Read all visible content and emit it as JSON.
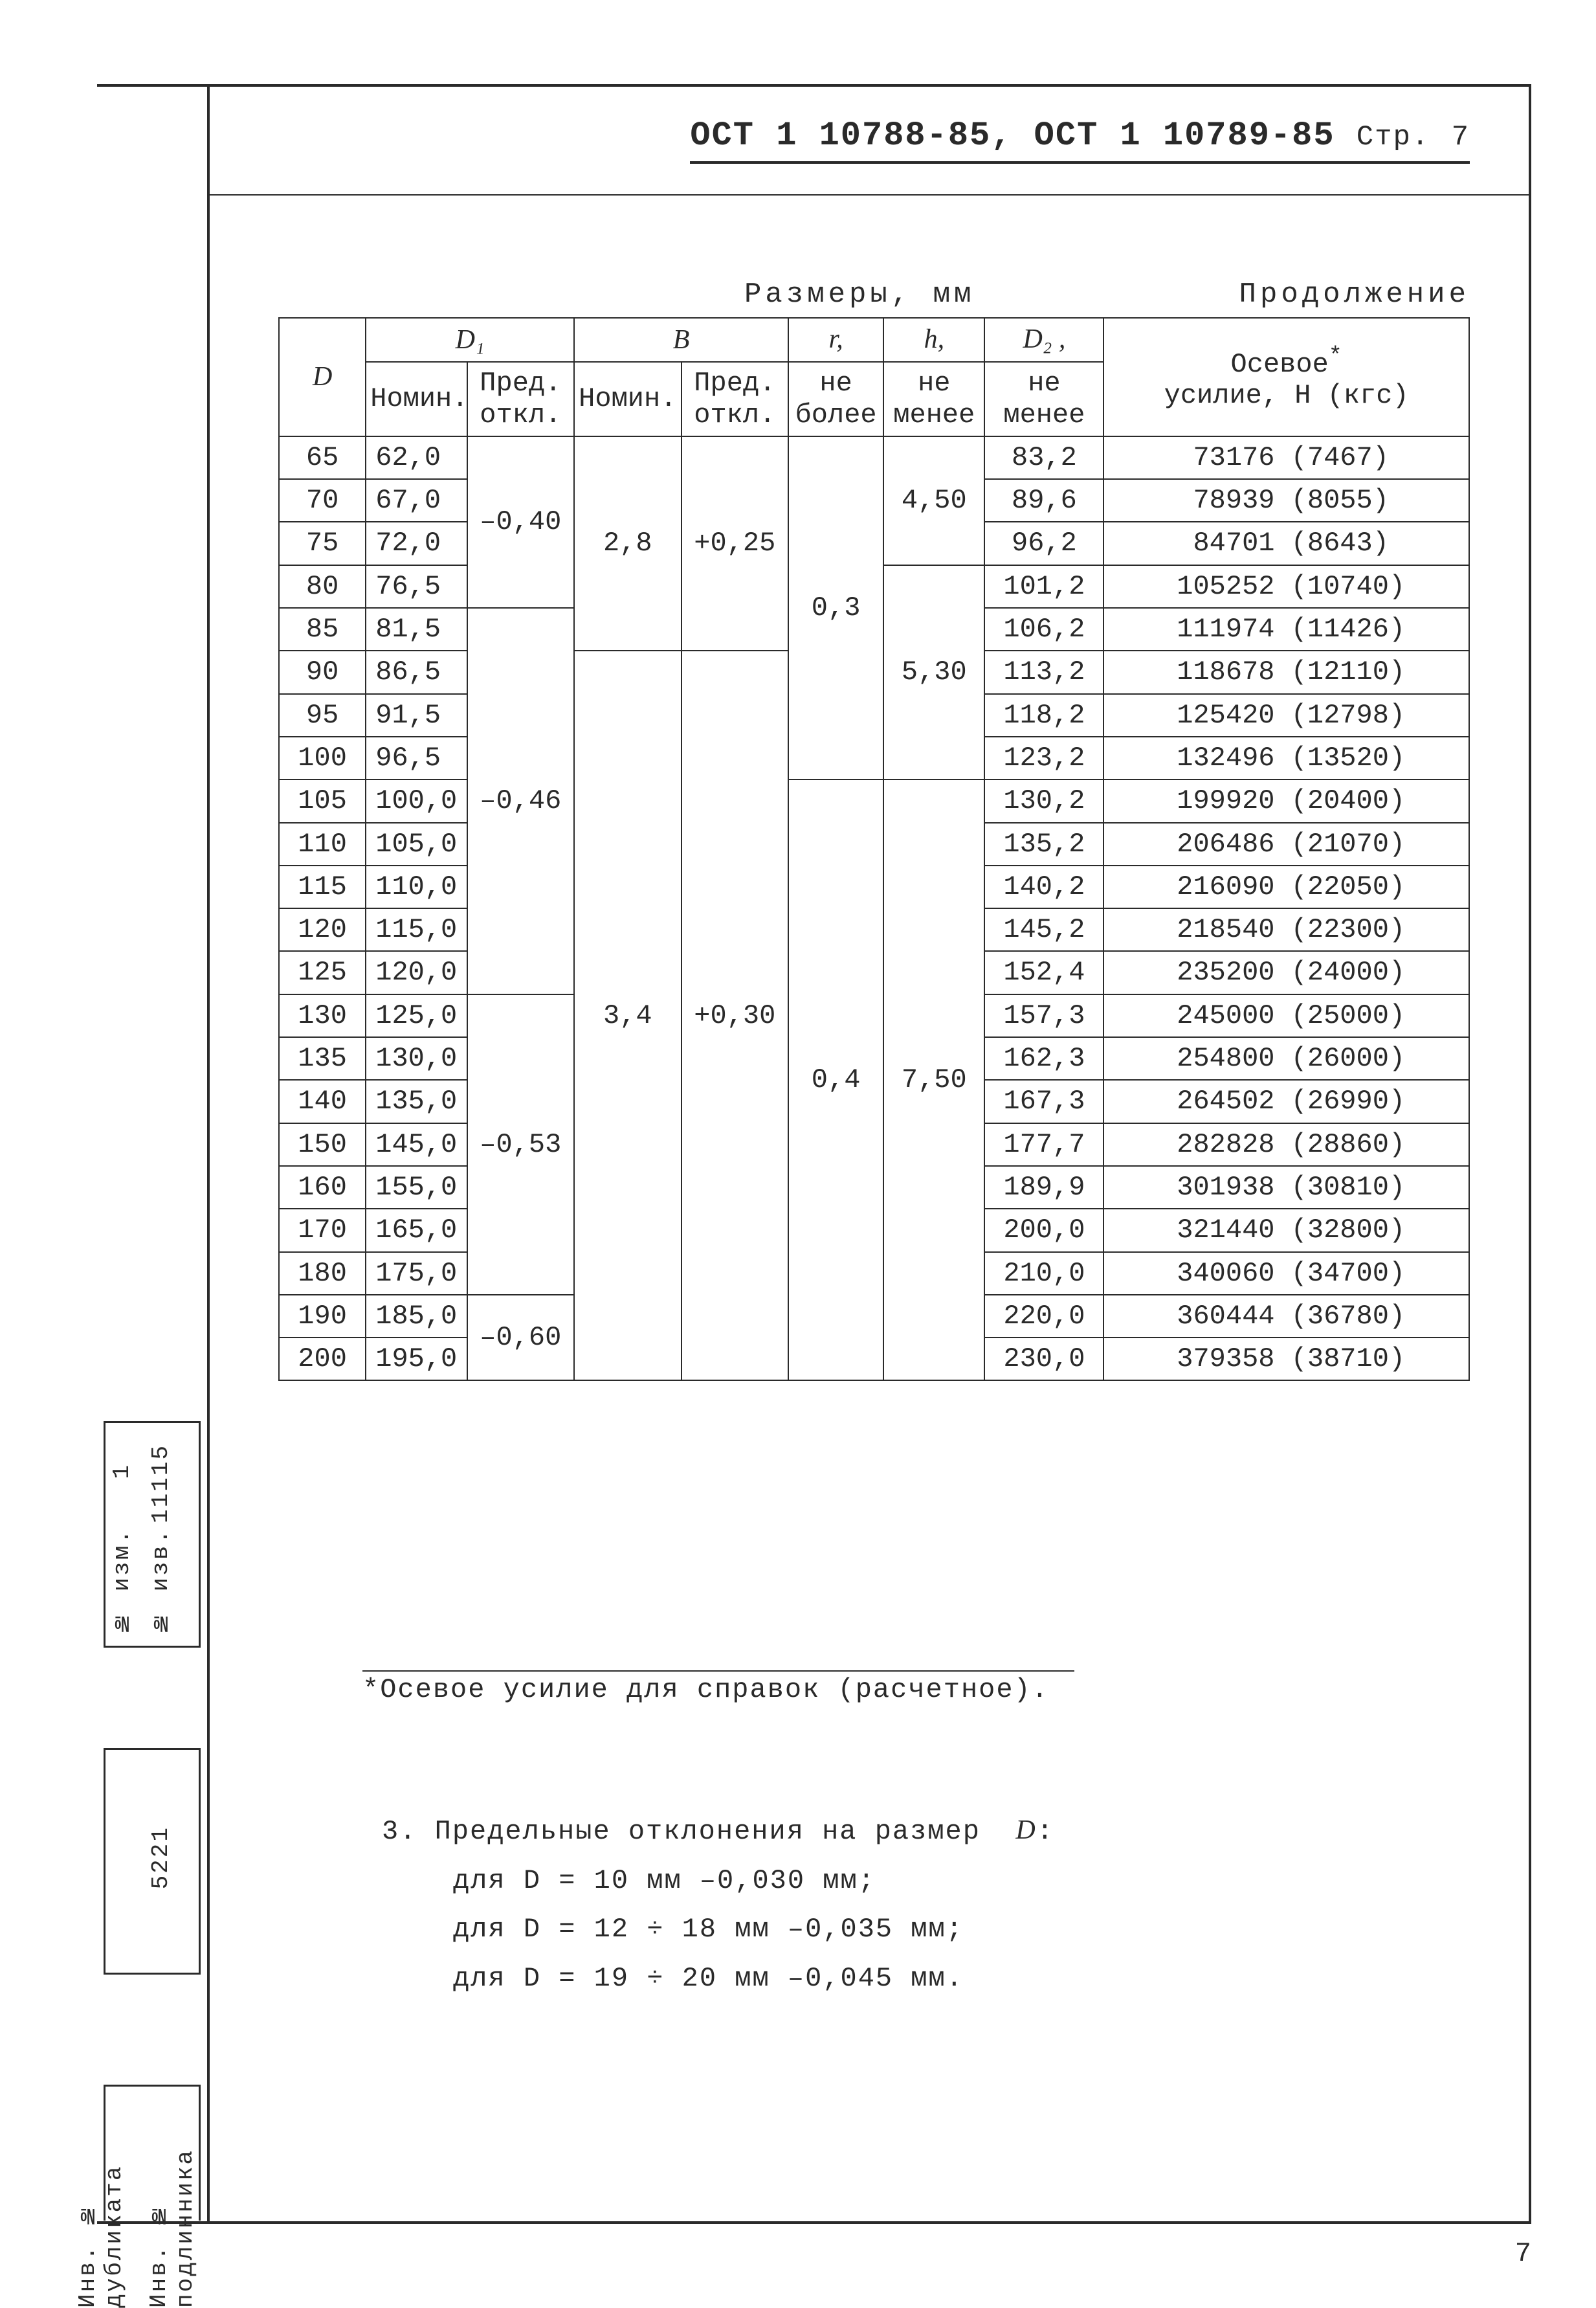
{
  "header": {
    "title": "ОСТ 1 10788-85, ОСТ 1 10789-85",
    "page_label": "Стр.",
    "page_num": "7"
  },
  "top": {
    "dim_label": "Размеры, мм",
    "cont_label": "Продолжение"
  },
  "columns": {
    "D": "D",
    "D1": "D₁",
    "B": "B",
    "nomin": "Номин.",
    "pred": "Пред. откл.",
    "r": "r,",
    "ne_bolee": "не более",
    "h": "h,",
    "ne_menee": "не менее",
    "D2": "D₂ ,",
    "force": "Осевое",
    "force_sub": "усилие, Н (кгс)",
    "asterisk": "*"
  },
  "rows": [
    {
      "D": "65",
      "D1": "62,0",
      "D2": "83,2",
      "F": "73176 (7467)"
    },
    {
      "D": "70",
      "D1": "67,0",
      "D2": "89,6",
      "F": "78939 (8055)"
    },
    {
      "D": "75",
      "D1": "72,0",
      "D2": "96,2",
      "F": "84701 (8643)"
    },
    {
      "D": "80",
      "D1": "76,5",
      "D2": "101,2",
      "F": "105252 (10740)"
    },
    {
      "D": "85",
      "D1": "81,5",
      "D2": "106,2",
      "F": "111974 (11426)"
    },
    {
      "D": "90",
      "D1": "86,5",
      "D2": "113,2",
      "F": "118678 (12110)"
    },
    {
      "D": "95",
      "D1": "91,5",
      "D2": "118,2",
      "F": "125420 (12798)"
    },
    {
      "D": "100",
      "D1": "96,5",
      "D2": "123,2",
      "F": "132496 (13520)"
    },
    {
      "D": "105",
      "D1": "100,0",
      "D2": "130,2",
      "F": "199920 (20400)"
    },
    {
      "D": "110",
      "D1": "105,0",
      "D2": "135,2",
      "F": "206486 (21070)"
    },
    {
      "D": "115",
      "D1": "110,0",
      "D2": "140,2",
      "F": "216090 (22050)"
    },
    {
      "D": "120",
      "D1": "115,0",
      "D2": "145,2",
      "F": "218540 (22300)"
    },
    {
      "D": "125",
      "D1": "120,0",
      "D2": "152,4",
      "F": "235200 (24000)"
    },
    {
      "D": "130",
      "D1": "125,0",
      "D2": "157,3",
      "F": "245000 (25000)"
    },
    {
      "D": "135",
      "D1": "130,0",
      "D2": "162,3",
      "F": "254800 (26000)"
    },
    {
      "D": "140",
      "D1": "135,0",
      "D2": "167,3",
      "F": "264502 (26990)"
    },
    {
      "D": "150",
      "D1": "145,0",
      "D2": "177,7",
      "F": "282828 (28860)"
    },
    {
      "D": "160",
      "D1": "155,0",
      "D2": "189,9",
      "F": "301938 (30810)"
    },
    {
      "D": "170",
      "D1": "165,0",
      "D2": "200,0",
      "F": "321440 (32800)"
    },
    {
      "D": "180",
      "D1": "175,0",
      "D2": "210,0",
      "F": "340060 (34700)"
    },
    {
      "D": "190",
      "D1": "185,0",
      "D2": "220,0",
      "F": "360444 (36780)"
    },
    {
      "D": "200",
      "D1": "195,0",
      "D2": "230,0",
      "F": "379358 (38710)"
    }
  ],
  "merges": {
    "pred_D1": [
      {
        "val": "–0,40",
        "span": 4
      },
      {
        "val": "–0,46",
        "span": 9
      },
      {
        "val": "–0,53",
        "span": 7
      },
      {
        "val": "–0,60",
        "span": 2
      }
    ],
    "B_nom": [
      {
        "val": "2,8",
        "span": 5
      },
      {
        "val": "3,4",
        "span": 17
      }
    ],
    "B_pred": [
      {
        "val": "+0,25",
        "span": 5
      },
      {
        "val": "+0,30",
        "span": 17
      }
    ],
    "r": [
      {
        "val": "0,3",
        "span": 8
      },
      {
        "val": "0,4",
        "span": 14
      }
    ],
    "h": [
      {
        "val": "4,50",
        "span": 3
      },
      {
        "val": "5,30",
        "span": 5
      },
      {
        "val": "7,50",
        "span": 14
      }
    ]
  },
  "footnote": "*Осевое усилие для справок (расчетное).",
  "notes": {
    "lead": "3. Предельные отклонения на размер",
    "var": "D",
    "lines": [
      "для  D = 10 мм  –0,030 мм;",
      "для  D = 12 ÷ 18 мм  –0,035 мм;",
      "для  D = 19 ÷ 20 мм  –0,045 мм."
    ]
  },
  "sidebar": {
    "izm_no": "№ изм.",
    "izm_val": "1",
    "izv_no": "№ изв.",
    "izv_val": "11115",
    "code": "5221",
    "dup": "Инв. № дубликата",
    "orig": "Инв. № подлинника"
  },
  "corner_page": "7",
  "colors": {
    "ink": "#2a2a2a",
    "paper": "#ffffff"
  }
}
